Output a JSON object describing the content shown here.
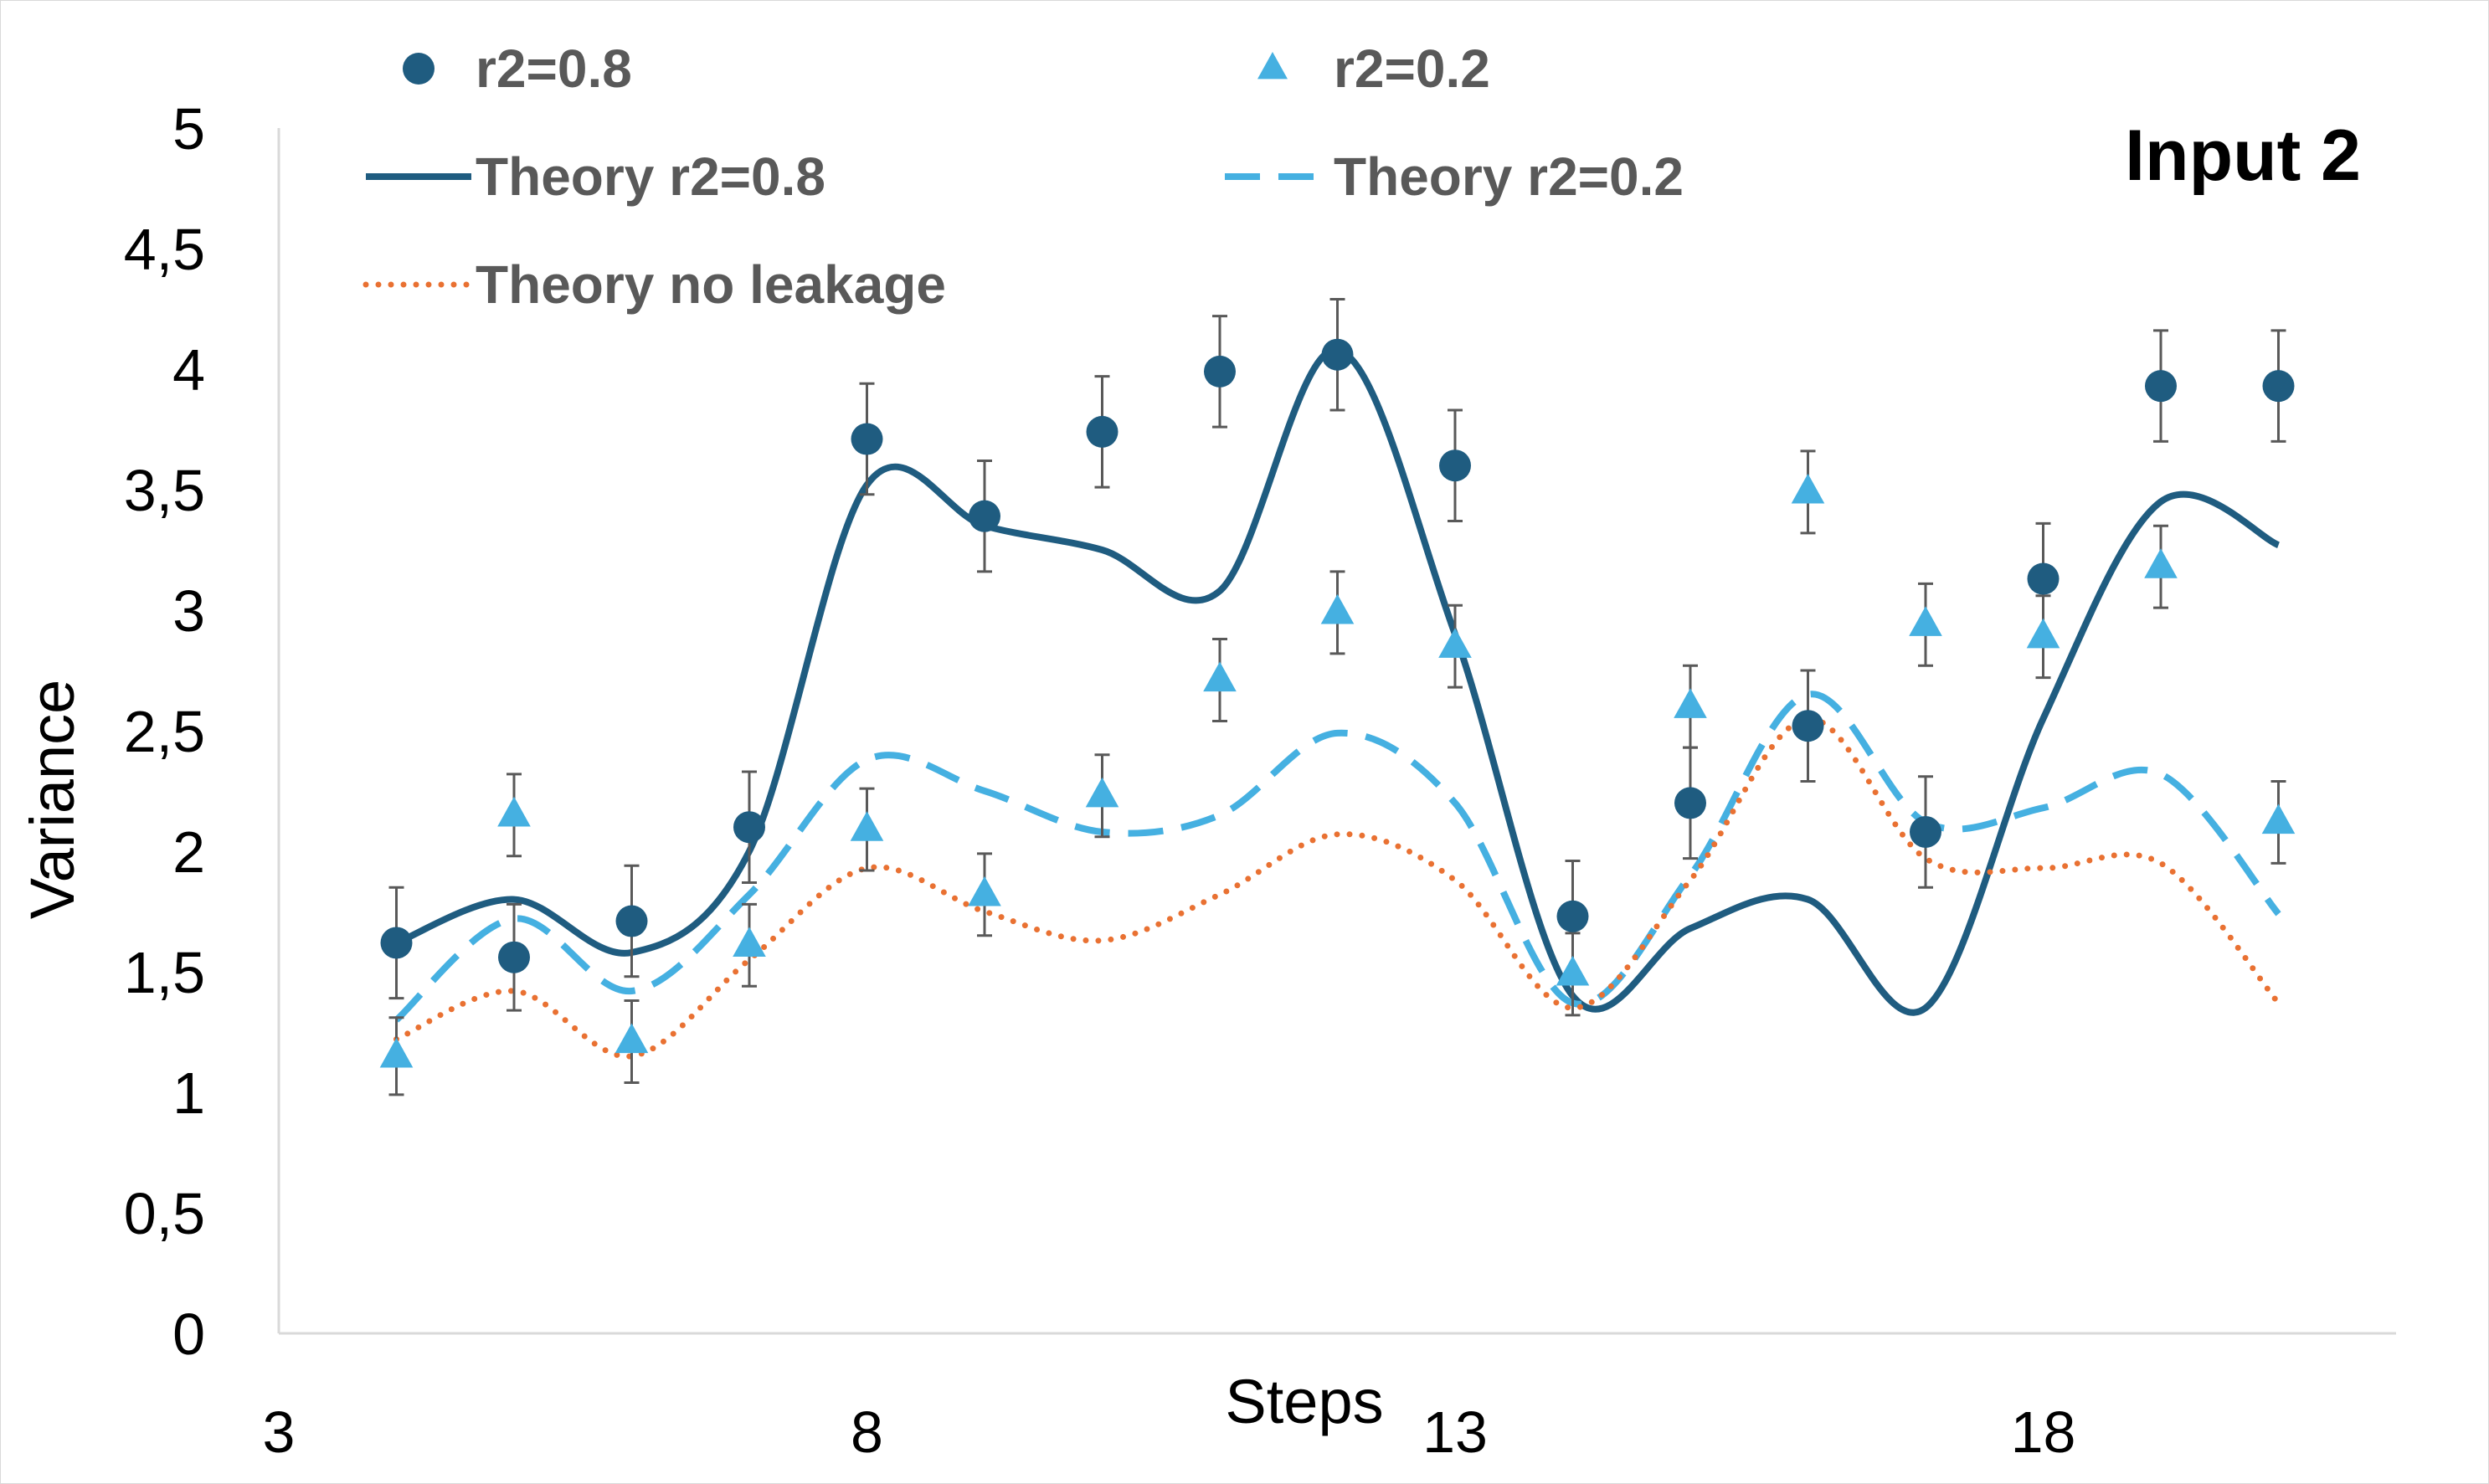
{
  "chart_data": {
    "type": "scatter",
    "title": "Input 2",
    "xlabel": "Steps",
    "ylabel": "Variance",
    "xlim": [
      3,
      21
    ],
    "ylim": [
      0,
      5
    ],
    "xticks": [
      3,
      8,
      13,
      18
    ],
    "xtick_labels": [
      "3",
      "8",
      "13",
      "18"
    ],
    "yticks": [
      0,
      0.5,
      1,
      1.5,
      2,
      2.5,
      3,
      3.5,
      4,
      4.5,
      5
    ],
    "ytick_labels": [
      "0",
      "0,5",
      "1",
      "1,5",
      "2",
      "2,5",
      "3",
      "3,5",
      "4",
      "4,5",
      "5"
    ],
    "grid": false,
    "legend_position": "top",
    "colors": {
      "dark": "#1F5C80",
      "light": "#45B0E1",
      "orange": "#E97132",
      "error": "#595959",
      "axis": "#d9d9d9"
    },
    "series": [
      {
        "name": "r2=0.8",
        "kind": "points",
        "marker": "circle",
        "color": "#1F5C80",
        "x": [
          4,
          5,
          6,
          7,
          8,
          9,
          10,
          11,
          12,
          13,
          14,
          15,
          16,
          17,
          18,
          19,
          20
        ],
        "y": [
          1.62,
          1.56,
          1.71,
          2.1,
          3.71,
          3.39,
          3.74,
          3.99,
          4.06,
          3.6,
          1.73,
          2.2,
          2.52,
          2.08,
          3.13,
          3.93,
          3.93
        ],
        "error": [
          0.23,
          0.22,
          0.23,
          0.23,
          0.23,
          0.23,
          0.23,
          0.23,
          0.23,
          0.23,
          0.23,
          0.23,
          0.23,
          0.23,
          0.23,
          0.23,
          0.23
        ]
      },
      {
        "name": "r2=0.2",
        "kind": "points",
        "marker": "triangle",
        "color": "#45B0E1",
        "x": [
          4,
          5,
          6,
          7,
          8,
          9,
          10,
          11,
          12,
          13,
          14,
          15,
          16,
          17,
          18,
          19,
          20
        ],
        "y": [
          1.15,
          2.15,
          1.21,
          1.61,
          2.09,
          1.82,
          2.23,
          2.71,
          2.99,
          2.85,
          1.49,
          2.6,
          3.49,
          2.94,
          2.89,
          3.18,
          2.12
        ],
        "error": [
          0.16,
          0.17,
          0.17,
          0.17,
          0.17,
          0.17,
          0.17,
          0.17,
          0.17,
          0.17,
          0.17,
          0.17,
          0.17,
          0.17,
          0.17,
          0.17,
          0.17
        ]
      },
      {
        "name": "Theory r2=0.8",
        "kind": "line",
        "style": "solid",
        "color": "#1F5C80",
        "x": [
          4,
          5,
          6,
          7,
          8,
          9,
          10,
          11,
          12,
          13,
          14,
          15,
          16,
          17,
          18,
          19,
          20
        ],
        "y": [
          1.62,
          1.8,
          1.58,
          2.0,
          3.52,
          3.35,
          3.25,
          3.08,
          4.08,
          2.9,
          1.4,
          1.68,
          1.8,
          1.35,
          2.55,
          3.45,
          3.27
        ]
      },
      {
        "name": "Theory r2=0.2",
        "kind": "line",
        "style": "dashed",
        "color": "#45B0E1",
        "x": [
          4,
          5,
          6,
          7,
          8,
          9,
          10,
          11,
          12,
          13,
          14,
          15,
          16,
          17,
          18,
          19,
          20
        ],
        "y": [
          1.3,
          1.72,
          1.42,
          1.82,
          2.38,
          2.25,
          2.08,
          2.15,
          2.49,
          2.2,
          1.37,
          1.9,
          2.65,
          2.12,
          2.18,
          2.32,
          1.74
        ]
      },
      {
        "name": "Theory no leakage",
        "kind": "line",
        "style": "dotted",
        "color": "#E97132",
        "x": [
          4,
          5,
          6,
          7,
          8,
          9,
          10,
          11,
          12,
          13,
          14,
          15,
          16,
          17,
          18,
          19,
          20
        ],
        "y": [
          1.22,
          1.42,
          1.15,
          1.55,
          1.93,
          1.75,
          1.63,
          1.82,
          2.07,
          1.88,
          1.35,
          1.88,
          2.55,
          1.97,
          1.93,
          1.95,
          1.37
        ]
      }
    ]
  }
}
